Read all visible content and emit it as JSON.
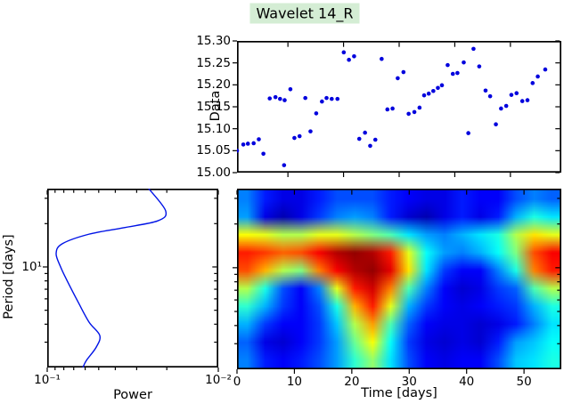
{
  "title": "Wavelet 14_R",
  "styles": {
    "title_bg": "#d4edd4",
    "marker_color": "#0000dd",
    "curve_color": "#0013e6",
    "frame_color": "#000000",
    "background": "#ffffff"
  },
  "chart_data": [
    {
      "type": "scatter",
      "title": "",
      "xlabel": "",
      "ylabel": "Data",
      "xlim": [
        0,
        56.5
      ],
      "ylim": [
        15.0,
        15.3
      ],
      "ytick_labels": [
        "15.30",
        "15.25",
        "15.20",
        "15.15",
        "15.10",
        "15.05",
        "15.00"
      ],
      "points": [
        [
          0.0,
          15.05
        ],
        [
          1.1,
          15.064
        ],
        [
          1.9,
          15.066
        ],
        [
          2.9,
          15.067
        ],
        [
          3.8,
          15.076
        ],
        [
          4.6,
          15.043
        ],
        [
          5.7,
          15.169
        ],
        [
          6.7,
          15.172
        ],
        [
          7.5,
          15.168
        ],
        [
          8.3,
          15.165
        ],
        [
          8.2,
          15.017
        ],
        [
          9.3,
          15.19
        ],
        [
          10.0,
          15.079
        ],
        [
          10.9,
          15.083
        ],
        [
          11.9,
          15.17
        ],
        [
          12.8,
          15.094
        ],
        [
          13.8,
          15.135
        ],
        [
          14.8,
          15.162
        ],
        [
          15.6,
          15.17
        ],
        [
          16.5,
          15.168
        ],
        [
          17.5,
          15.168
        ],
        [
          18.6,
          15.274
        ],
        [
          19.5,
          15.257
        ],
        [
          20.4,
          15.265
        ],
        [
          21.3,
          15.077
        ],
        [
          22.3,
          15.091
        ],
        [
          23.2,
          15.061
        ],
        [
          24.1,
          15.075
        ],
        [
          25.2,
          15.259
        ],
        [
          26.2,
          15.144
        ],
        [
          27.1,
          15.146
        ],
        [
          28.0,
          15.215
        ],
        [
          29.0,
          15.229
        ],
        [
          29.9,
          15.134
        ],
        [
          30.9,
          15.138
        ],
        [
          31.8,
          15.148
        ],
        [
          32.6,
          15.176
        ],
        [
          33.4,
          15.18
        ],
        [
          34.2,
          15.186
        ],
        [
          35.0,
          15.193
        ],
        [
          35.7,
          15.199
        ],
        [
          36.7,
          15.245
        ],
        [
          37.6,
          15.225
        ],
        [
          38.4,
          15.227
        ],
        [
          39.5,
          15.251
        ],
        [
          40.3,
          15.09
        ],
        [
          41.2,
          15.282
        ],
        [
          42.2,
          15.242
        ],
        [
          43.3,
          15.187
        ],
        [
          44.1,
          15.174
        ],
        [
          45.1,
          15.11
        ],
        [
          46.0,
          15.146
        ],
        [
          46.9,
          15.152
        ],
        [
          47.8,
          15.177
        ],
        [
          48.7,
          15.181
        ],
        [
          49.7,
          15.163
        ],
        [
          50.6,
          15.165
        ],
        [
          51.5,
          15.204
        ],
        [
          52.4,
          15.219
        ],
        [
          53.7,
          15.235
        ]
      ]
    },
    {
      "type": "line",
      "xlabel": "Power",
      "ylabel": "Period [days]",
      "xscale": "log-reversed",
      "xlim": [
        0.1,
        0.01
      ],
      "yscale": "log",
      "ylim": [
        2,
        35
      ],
      "xtick_labels": [
        "10⁻¹",
        "10⁻²"
      ],
      "ytick_label": "10¹",
      "points": [
        [
          0.0255,
          35.0
        ],
        [
          0.0203,
          24.5
        ],
        [
          0.0226,
          20.9
        ],
        [
          0.0361,
          18.7
        ],
        [
          0.0569,
          16.9
        ],
        [
          0.0816,
          14.5
        ],
        [
          0.0887,
          12.4
        ],
        [
          0.0835,
          10.0
        ],
        [
          0.0768,
          8.1
        ],
        [
          0.0657,
          5.65
        ],
        [
          0.0569,
          4.13
        ],
        [
          0.0493,
          3.34
        ],
        [
          0.0517,
          2.77
        ],
        [
          0.059,
          2.24
        ],
        [
          0.0619,
          2.0
        ]
      ]
    },
    {
      "type": "heatmap",
      "xlabel": "Time [days]",
      "xlim": [
        0,
        56.5
      ],
      "period_lim": [
        2,
        35
      ],
      "xticks": [
        0,
        10,
        20,
        30,
        40,
        50
      ],
      "colormap": "jet",
      "grid_cols": 18,
      "grid_rows": 10,
      "values": [
        [
          0.25,
          0.15,
          0.1,
          0.1,
          0.15,
          0.2,
          0.2,
          0.2,
          0.15,
          0.12,
          0.1,
          0.1,
          0.15,
          0.12,
          0.12,
          0.2,
          0.25,
          0.22
        ],
        [
          0.28,
          0.1,
          0.05,
          0.1,
          0.18,
          0.25,
          0.28,
          0.25,
          0.15,
          0.08,
          0.05,
          0.1,
          0.15,
          0.1,
          0.15,
          0.3,
          0.4,
          0.35
        ],
        [
          0.62,
          0.6,
          0.55,
          0.55,
          0.6,
          0.6,
          0.55,
          0.5,
          0.45,
          0.35,
          0.28,
          0.25,
          0.3,
          0.35,
          0.4,
          0.55,
          0.65,
          0.6
        ],
        [
          0.85,
          0.82,
          0.78,
          0.8,
          0.88,
          0.95,
          0.98,
          0.95,
          0.85,
          0.6,
          0.38,
          0.28,
          0.25,
          0.3,
          0.38,
          0.5,
          0.8,
          0.88
        ],
        [
          0.8,
          0.7,
          0.55,
          0.5,
          0.75,
          0.88,
          0.95,
          0.98,
          0.9,
          0.65,
          0.35,
          0.18,
          0.12,
          0.12,
          0.25,
          0.4,
          0.75,
          0.85
        ],
        [
          0.55,
          0.4,
          0.2,
          0.12,
          0.25,
          0.6,
          0.85,
          0.92,
          0.75,
          0.45,
          0.25,
          0.12,
          0.08,
          0.1,
          0.18,
          0.22,
          0.45,
          0.55
        ],
        [
          0.42,
          0.3,
          0.18,
          0.12,
          0.2,
          0.4,
          0.7,
          0.85,
          0.6,
          0.3,
          0.18,
          0.12,
          0.1,
          0.12,
          0.15,
          0.18,
          0.3,
          0.4
        ],
        [
          0.3,
          0.18,
          0.12,
          0.12,
          0.18,
          0.32,
          0.55,
          0.72,
          0.45,
          0.22,
          0.12,
          0.1,
          0.1,
          0.08,
          0.1,
          0.15,
          0.25,
          0.35
        ],
        [
          0.22,
          0.1,
          0.08,
          0.12,
          0.18,
          0.28,
          0.48,
          0.62,
          0.38,
          0.18,
          0.1,
          0.08,
          0.1,
          0.08,
          0.15,
          0.28,
          0.32,
          0.38
        ],
        [
          0.25,
          0.15,
          0.12,
          0.15,
          0.2,
          0.28,
          0.42,
          0.52,
          0.35,
          0.2,
          0.12,
          0.1,
          0.12,
          0.12,
          0.2,
          0.32,
          0.35,
          0.4
        ]
      ]
    }
  ]
}
